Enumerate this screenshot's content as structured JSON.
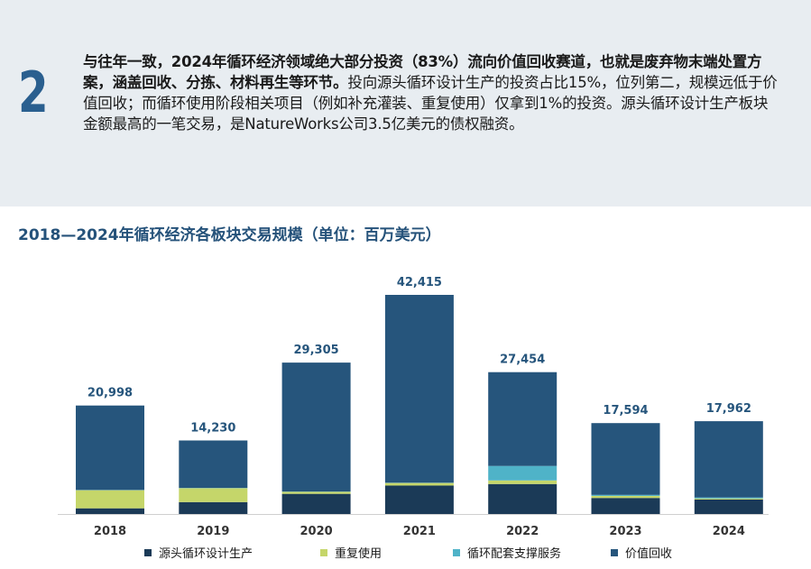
{
  "intro": {
    "number": "2",
    "bold_text": "与往年一致，2024年循环经济领域绝大部分投资（83%）流向价值回收赛道，也就是废弃物末端处置方案，涵盖回收、分拣、材料再生等环节。",
    "text": "投向源头循环设计生产的投资占比15%，位列第二，规模远低于价值回收；而循环使用阶段相关项目（例如补充灌装、重复使用）仅拿到1%的投资。源头循环设计生产板块金额最高的一笔交易，是NatureWorks公司3.5亿美元的债权融资。"
  },
  "chart_data": {
    "type": "bar",
    "stacked": true,
    "title": "2018—2024年循环经济各板块交易规模（单位：百万美元）",
    "categories": [
      "2018",
      "2019",
      "2020",
      "2021",
      "2022",
      "2023",
      "2024"
    ],
    "totals": [
      "20,998",
      "14,230",
      "29,305",
      "42,415",
      "27,454",
      "17,594",
      "17,962"
    ],
    "total_values": [
      20998,
      14230,
      29305,
      42415,
      27454,
      17594,
      17962
    ],
    "ylim": [
      0,
      42415
    ],
    "series": [
      {
        "name": "源头循环设计生产",
        "color": "#1b3a57",
        "values": [
          1100,
          2300,
          3900,
          5500,
          5800,
          3100,
          2800
        ]
      },
      {
        "name": "重复使用",
        "color": "#c5d66a",
        "values": [
          3500,
          2700,
          400,
          500,
          700,
          400,
          200
        ]
      },
      {
        "name": "循环配套支撑服务",
        "color": "#4fb3c8",
        "values": [
          50,
          50,
          50,
          50,
          2800,
          200,
          200
        ]
      },
      {
        "name": "价值回收",
        "color": "#26557c",
        "values": [
          16348,
          9180,
          24955,
          36365,
          18154,
          13894,
          14762
        ]
      }
    ],
    "legend_position": "bottom"
  }
}
